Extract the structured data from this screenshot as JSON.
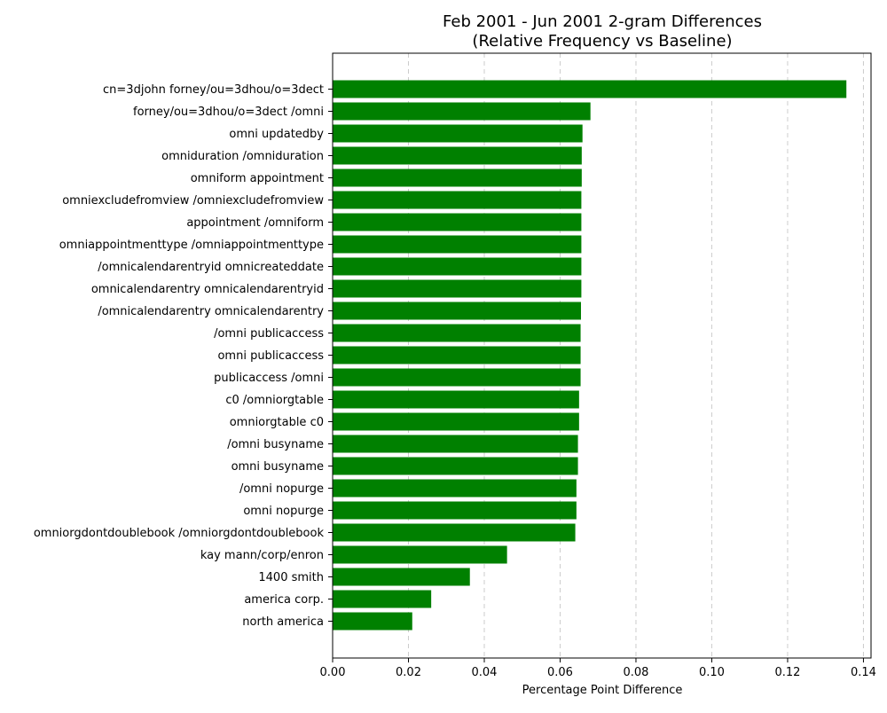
{
  "chart_data": {
    "type": "bar",
    "orientation": "horizontal",
    "title": "Feb 2001 - Jun 2001 2-gram Differences",
    "subtitle": "(Relative Frequency vs Baseline)",
    "xlabel": "Percentage Point Difference",
    "ylabel": "",
    "xlim": [
      0.0,
      0.142
    ],
    "x_ticks": [
      "0.00",
      "0.02",
      "0.04",
      "0.06",
      "0.08",
      "0.10",
      "0.12",
      "0.14"
    ],
    "grid": "x-dashed",
    "bar_color": "#008000",
    "categories": [
      "cn=3djohn forney/ou=3dhou/o=3dect",
      "forney/ou=3dhou/o=3dect /omni",
      "omni updatedby",
      "omniduration /omniduration",
      "omniform appointment",
      "omniexcludefromview /omniexcludefromview",
      "appointment /omniform",
      "omniappointmenttype /omniappointmenttype",
      "/omnicalendarentryid omnicreateddate",
      "omnicalendarentry omnicalendarentryid",
      "/omnicalendarentry omnicalendarentry",
      "/omni publicaccess",
      "omni publicaccess",
      "publicaccess /omni",
      "c0 /omniorgtable",
      "omniorgtable c0",
      "/omni busyname",
      "omni busyname",
      "/omni nopurge",
      "omni nopurge",
      "omniorgdontdoublebook /omniorgdontdoublebook",
      "kay mann/corp/enron",
      "1400 smith",
      "america corp.",
      "north america"
    ],
    "values": [
      0.1355,
      0.068,
      0.0659,
      0.0657,
      0.0657,
      0.0656,
      0.0656,
      0.0656,
      0.0656,
      0.0656,
      0.0655,
      0.0654,
      0.0654,
      0.0654,
      0.065,
      0.065,
      0.0647,
      0.0647,
      0.0643,
      0.0643,
      0.064,
      0.046,
      0.0362,
      0.026,
      0.021
    ]
  }
}
